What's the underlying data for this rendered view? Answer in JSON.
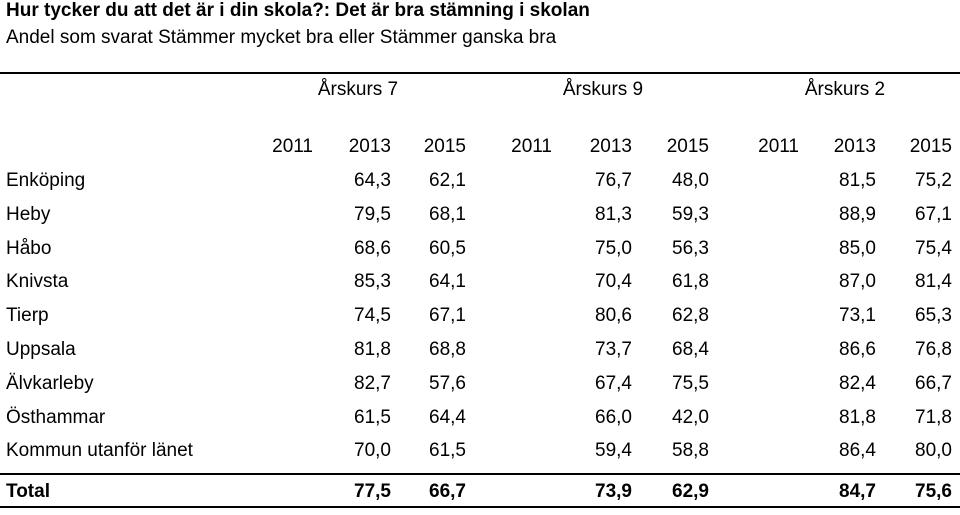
{
  "title": "Hur tycker du att det är i din skola?: Det är bra stämning i skolan",
  "subtitle": "Andel som svarat Stämmer mycket bra eller Stämmer ganska bra",
  "grades": [
    "Årskurs 7",
    "Årskurs 9",
    "Årskurs 2"
  ],
  "years": [
    "2011",
    "2013",
    "2015",
    "2011",
    "2013",
    "2015",
    "2011",
    "2013",
    "2015"
  ],
  "rows": [
    {
      "name": "Enköping",
      "values": [
        "",
        "64,3",
        "62,1",
        "",
        "76,7",
        "48,0",
        "",
        "81,5",
        "75,2"
      ]
    },
    {
      "name": "Heby",
      "values": [
        "",
        "79,5",
        "68,1",
        "",
        "81,3",
        "59,3",
        "",
        "88,9",
        "67,1"
      ]
    },
    {
      "name": "Håbo",
      "values": [
        "",
        "68,6",
        "60,5",
        "",
        "75,0",
        "56,3",
        "",
        "85,0",
        "75,4"
      ]
    },
    {
      "name": "Knivsta",
      "values": [
        "",
        "85,3",
        "64,1",
        "",
        "70,4",
        "61,8",
        "",
        "87,0",
        "81,4"
      ]
    },
    {
      "name": "Tierp",
      "values": [
        "",
        "74,5",
        "67,1",
        "",
        "80,6",
        "62,8",
        "",
        "73,1",
        "65,3"
      ]
    },
    {
      "name": "Uppsala",
      "values": [
        "",
        "81,8",
        "68,8",
        "",
        "73,7",
        "68,4",
        "",
        "86,6",
        "76,8"
      ]
    },
    {
      "name": "Älvkarleby",
      "values": [
        "",
        "82,7",
        "57,6",
        "",
        "67,4",
        "75,5",
        "",
        "82,4",
        "66,7"
      ]
    },
    {
      "name": "Östhammar",
      "values": [
        "",
        "61,5",
        "64,4",
        "",
        "66,0",
        "42,0",
        "",
        "81,8",
        "71,8"
      ]
    },
    {
      "name": "Kommun utanför länet",
      "values": [
        "",
        "70,0",
        "61,5",
        "",
        "59,4",
        "58,8",
        "",
        "86,4",
        "80,0"
      ]
    }
  ],
  "total": {
    "name": "Total",
    "values": [
      "",
      "77,5",
      "66,7",
      "",
      "73,9",
      "62,9",
      "",
      "84,7",
      "75,6"
    ]
  }
}
